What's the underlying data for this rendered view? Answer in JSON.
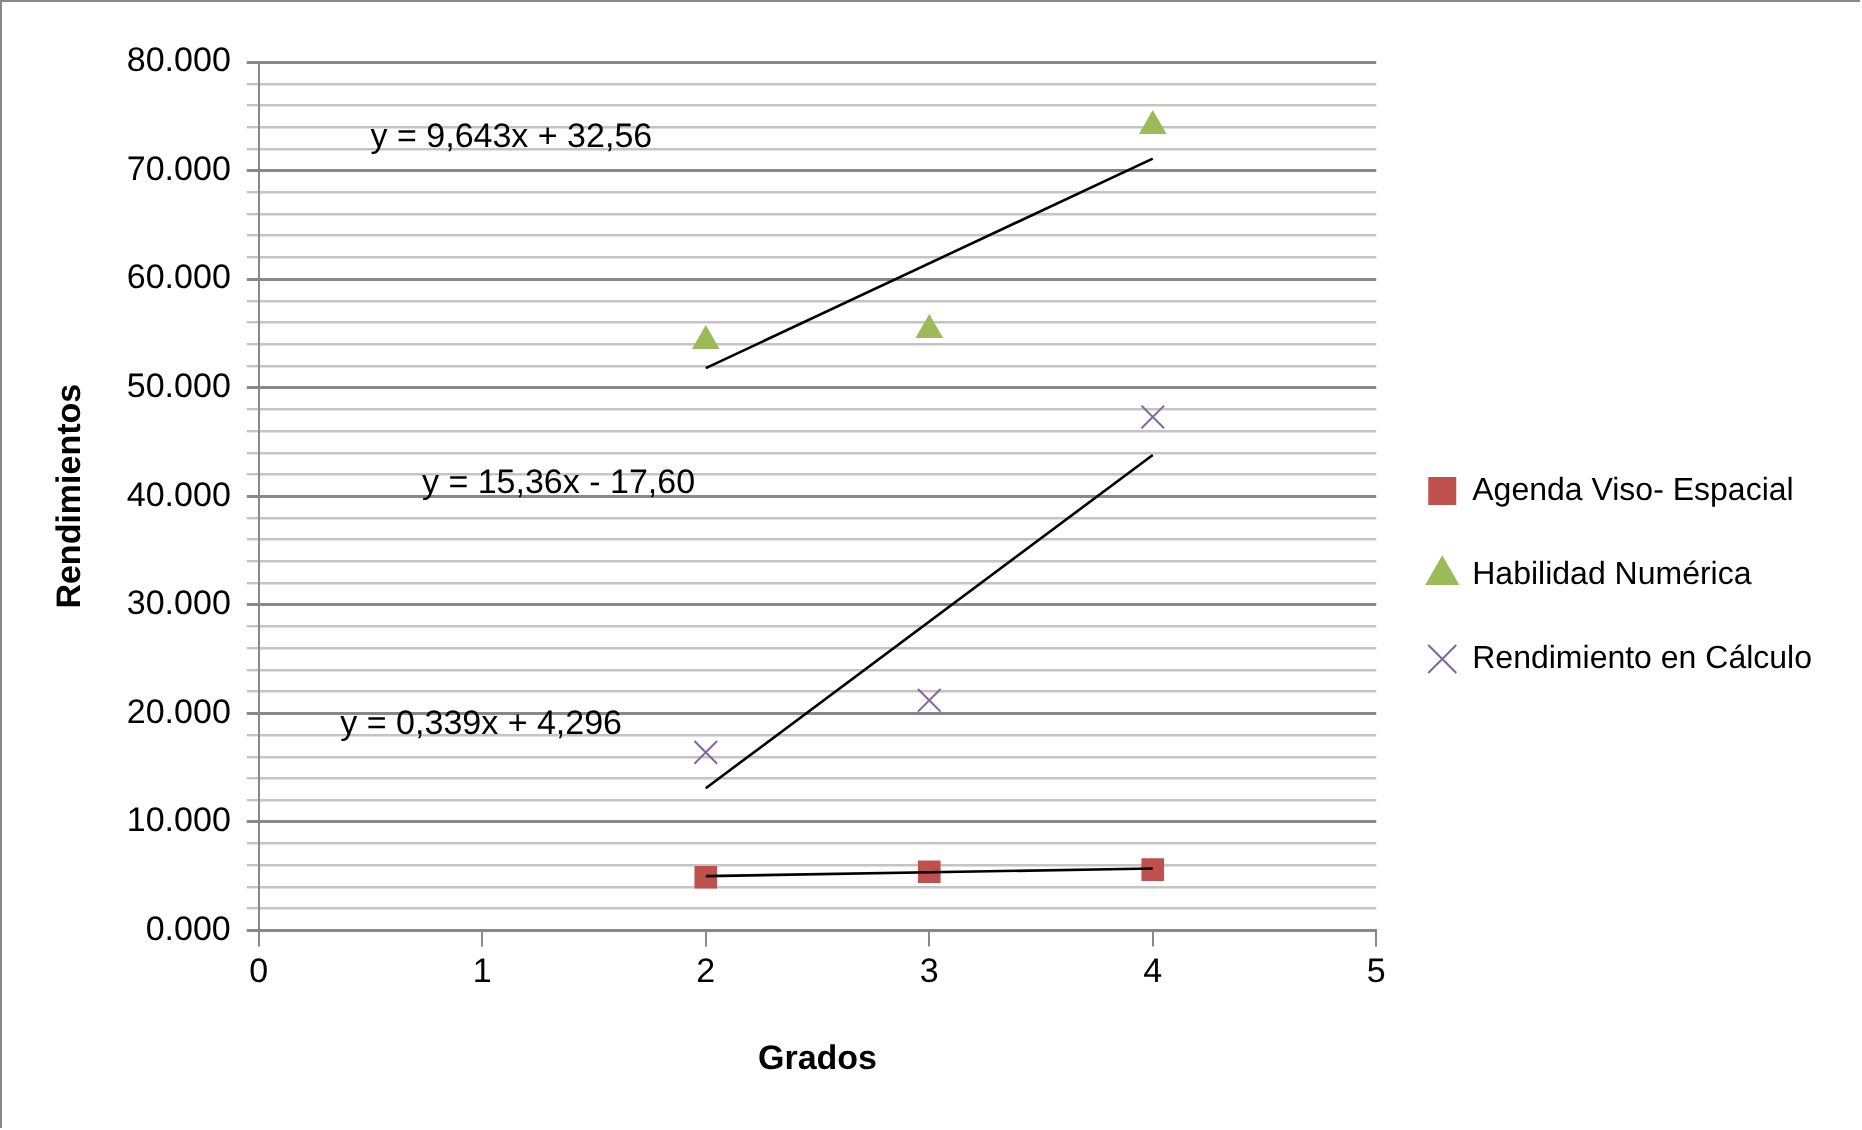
{
  "chart_data": {
    "type": "scatter",
    "xlabel": "Grados",
    "ylabel": "Rendimientos",
    "xlim": [
      0,
      5
    ],
    "xticks": [
      0,
      1,
      2,
      3,
      4,
      5
    ],
    "ylim": [
      0,
      80000
    ],
    "yticks": [
      {
        "value": 0,
        "label": "0.000"
      },
      {
        "value": 2000,
        "label": null
      },
      {
        "value": 4000,
        "label": null
      },
      {
        "value": 6000,
        "label": null
      },
      {
        "value": 8000,
        "label": null
      },
      {
        "value": 10000,
        "label": "10.000"
      },
      {
        "value": 12000,
        "label": null
      },
      {
        "value": 14000,
        "label": null
      },
      {
        "value": 16000,
        "label": null
      },
      {
        "value": 18000,
        "label": null
      },
      {
        "value": 20000,
        "label": "20.000"
      },
      {
        "value": 22000,
        "label": null
      },
      {
        "value": 24000,
        "label": null
      },
      {
        "value": 26000,
        "label": null
      },
      {
        "value": 28000,
        "label": null
      },
      {
        "value": 30000,
        "label": "30.000"
      },
      {
        "value": 32000,
        "label": null
      },
      {
        "value": 34000,
        "label": null
      },
      {
        "value": 36000,
        "label": null
      },
      {
        "value": 38000,
        "label": null
      },
      {
        "value": 40000,
        "label": "40.000"
      },
      {
        "value": 42000,
        "label": null
      },
      {
        "value": 44000,
        "label": null
      },
      {
        "value": 46000,
        "label": null
      },
      {
        "value": 48000,
        "label": null
      },
      {
        "value": 50000,
        "label": "50.000"
      },
      {
        "value": 52000,
        "label": null
      },
      {
        "value": 54000,
        "label": null
      },
      {
        "value": 56000,
        "label": null
      },
      {
        "value": 58000,
        "label": null
      },
      {
        "value": 60000,
        "label": "60.000"
      },
      {
        "value": 62000,
        "label": null
      },
      {
        "value": 64000,
        "label": null
      },
      {
        "value": 66000,
        "label": null
      },
      {
        "value": 68000,
        "label": null
      },
      {
        "value": 70000,
        "label": "70.000"
      },
      {
        "value": 72000,
        "label": null
      },
      {
        "value": 74000,
        "label": null
      },
      {
        "value": 76000,
        "label": null
      },
      {
        "value": 78000,
        "label": null
      },
      {
        "value": 80000,
        "label": "80.000"
      }
    ],
    "grid": "y",
    "legend": "right",
    "series": [
      {
        "name": "Agenda Viso- Espacial",
        "marker": "square",
        "color": "#c0504d",
        "x": [
          2,
          3,
          4
        ],
        "values": [
          4900,
          5400,
          5600
        ]
      },
      {
        "name": "Habilidad Numérica",
        "marker": "triangle",
        "color": "#9bbb59",
        "x": [
          2,
          3,
          4
        ],
        "values": [
          54300,
          55300,
          74100
        ]
      },
      {
        "name": "Rendimiento en Cálculo",
        "marker": "cross",
        "color": "#8064a2",
        "x": [
          2,
          3,
          4
        ],
        "values": [
          16400,
          21200,
          47300
        ]
      },
      {
        "type": "line",
        "marker": "none",
        "color": "#000000",
        "x": [
          2,
          4
        ],
        "values": [
          5000,
          5700
        ]
      },
      {
        "type": "line",
        "marker": "none",
        "color": "#000000",
        "x": [
          2,
          4
        ],
        "values": [
          51800,
          71100
        ]
      },
      {
        "type": "line",
        "marker": "none",
        "color": "#000000",
        "x": [
          2,
          4
        ],
        "values": [
          13100,
          43800
        ]
      }
    ],
    "annotations": [
      "y = 9,643x + 32,56",
      "y = 15,36x - 17,60",
      "y = 0,339x + 4,296"
    ]
  }
}
